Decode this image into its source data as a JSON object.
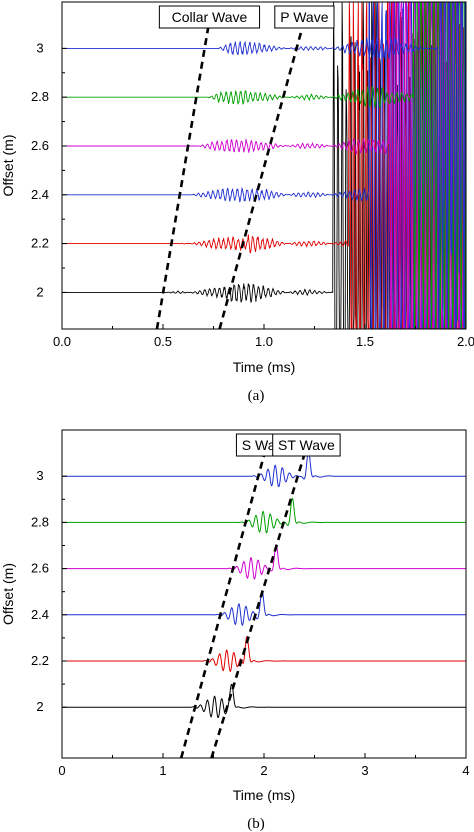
{
  "chart_data": [
    {
      "type": "line",
      "caption": "(a)",
      "xlabel": "Time (ms)",
      "ylabel": "Offset (m)",
      "xlim": [
        0.0,
        2.0
      ],
      "ylim": [
        1.85,
        3.19
      ],
      "xticks": [
        0.0,
        0.5,
        1.0,
        1.5,
        2.0
      ],
      "xtick_labels": [
        "0.0",
        "0.5",
        "1.0",
        "1.5",
        "2.0"
      ],
      "yticks": [
        2,
        2.2,
        2.4,
        2.6,
        2.8,
        3
      ],
      "ytick_labels": [
        "2",
        "2.2",
        "2.4",
        "2.6",
        "2.8",
        "3"
      ],
      "series": [
        {
          "offset": 2.0,
          "color": "#000000",
          "first_arrival_ms": 0.52,
          "second_arrival_ms": 0.83,
          "burst_ms": 1.34
        },
        {
          "offset": 2.2,
          "color": "#e00000",
          "first_arrival_ms": 0.57,
          "second_arrival_ms": 0.92,
          "burst_ms": 1.42
        },
        {
          "offset": 2.4,
          "color": "#2030d0",
          "first_arrival_ms": 0.62,
          "second_arrival_ms": 1.01,
          "burst_ms": 1.52
        },
        {
          "offset": 2.6,
          "color": "#d000d0",
          "first_arrival_ms": 0.67,
          "second_arrival_ms": 1.1,
          "burst_ms": 1.62
        },
        {
          "offset": 2.8,
          "color": "#00a000",
          "first_arrival_ms": 0.72,
          "second_arrival_ms": 1.19,
          "burst_ms": 1.74
        },
        {
          "offset": 3.0,
          "color": "#2030d0",
          "first_arrival_ms": 0.77,
          "second_arrival_ms": 1.28,
          "burst_ms": 1.86
        }
      ],
      "annotations": [
        {
          "text": "Collar Wave",
          "line_x": [
            0.47,
            0.73
          ]
        },
        {
          "text": "P Wave",
          "line_x": [
            0.78,
            1.2
          ]
        }
      ]
    },
    {
      "type": "line",
      "caption": "(b)",
      "xlabel": "Time (ms)",
      "ylabel": "Offset (m)",
      "xlim": [
        0,
        4
      ],
      "ylim": [
        1.78,
        3.2
      ],
      "xticks": [
        0,
        1,
        2,
        3,
        4
      ],
      "xtick_labels": [
        "0",
        "1",
        "2",
        "3",
        "4"
      ],
      "yticks": [
        2,
        2.2,
        2.4,
        2.6,
        2.8,
        3
      ],
      "ytick_labels": [
        "2",
        "2.2",
        "2.4",
        "2.6",
        "2.8",
        "3"
      ],
      "series": [
        {
          "offset": 2.0,
          "color": "#000000",
          "s_arrival_ms": 1.35,
          "st_peak_ms": 1.68
        },
        {
          "offset": 2.2,
          "color": "#e00000",
          "s_arrival_ms": 1.47,
          "st_peak_ms": 1.83
        },
        {
          "offset": 2.4,
          "color": "#2030d0",
          "s_arrival_ms": 1.59,
          "st_peak_ms": 1.98
        },
        {
          "offset": 2.6,
          "color": "#d000d0",
          "s_arrival_ms": 1.71,
          "st_peak_ms": 2.12
        },
        {
          "offset": 2.8,
          "color": "#00a000",
          "s_arrival_ms": 1.83,
          "st_peak_ms": 2.28
        },
        {
          "offset": 3.0,
          "color": "#2030d0",
          "s_arrival_ms": 1.95,
          "st_peak_ms": 2.44
        }
      ],
      "annotations": [
        {
          "text": "S Wave",
          "line_x": [
            1.18,
            2.02
          ]
        },
        {
          "text": "ST Wave",
          "line_x": [
            1.48,
            2.42
          ]
        }
      ]
    }
  ]
}
